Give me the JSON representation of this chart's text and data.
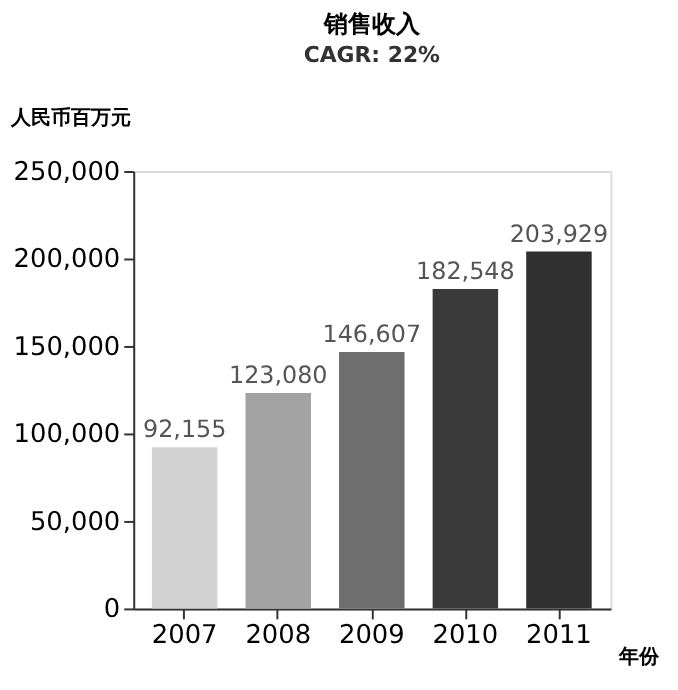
{
  "chart_data": {
    "type": "bar",
    "title": "销售收入",
    "subtitle": "CAGR: 22%",
    "ylabel": "人民币百万元",
    "xlabel": "年份",
    "categories": [
      "2007",
      "2008",
      "2009",
      "2010",
      "2011"
    ],
    "values": [
      92155,
      123080,
      146607,
      182548,
      203929
    ],
    "value_labels": [
      "92,155",
      "123,080",
      "146,607",
      "182,548",
      "203,929"
    ],
    "colors": [
      "#d3d3d3",
      "#a3a3a3",
      "#6e6e6e",
      "#3a3a3a",
      "#303030"
    ],
    "ylim": [
      0,
      250000
    ],
    "yticks": [
      0,
      {
        "value": 50000,
        "label": "50,000"
      },
      {
        "value": 100000,
        "label": "100,000"
      },
      {
        "value": 150000,
        "label": "150,000"
      },
      {
        "value": 200000,
        "label": "200,000"
      },
      {
        "value": 250000,
        "label": "250,000"
      }
    ],
    "grid": false,
    "legend": false
  }
}
